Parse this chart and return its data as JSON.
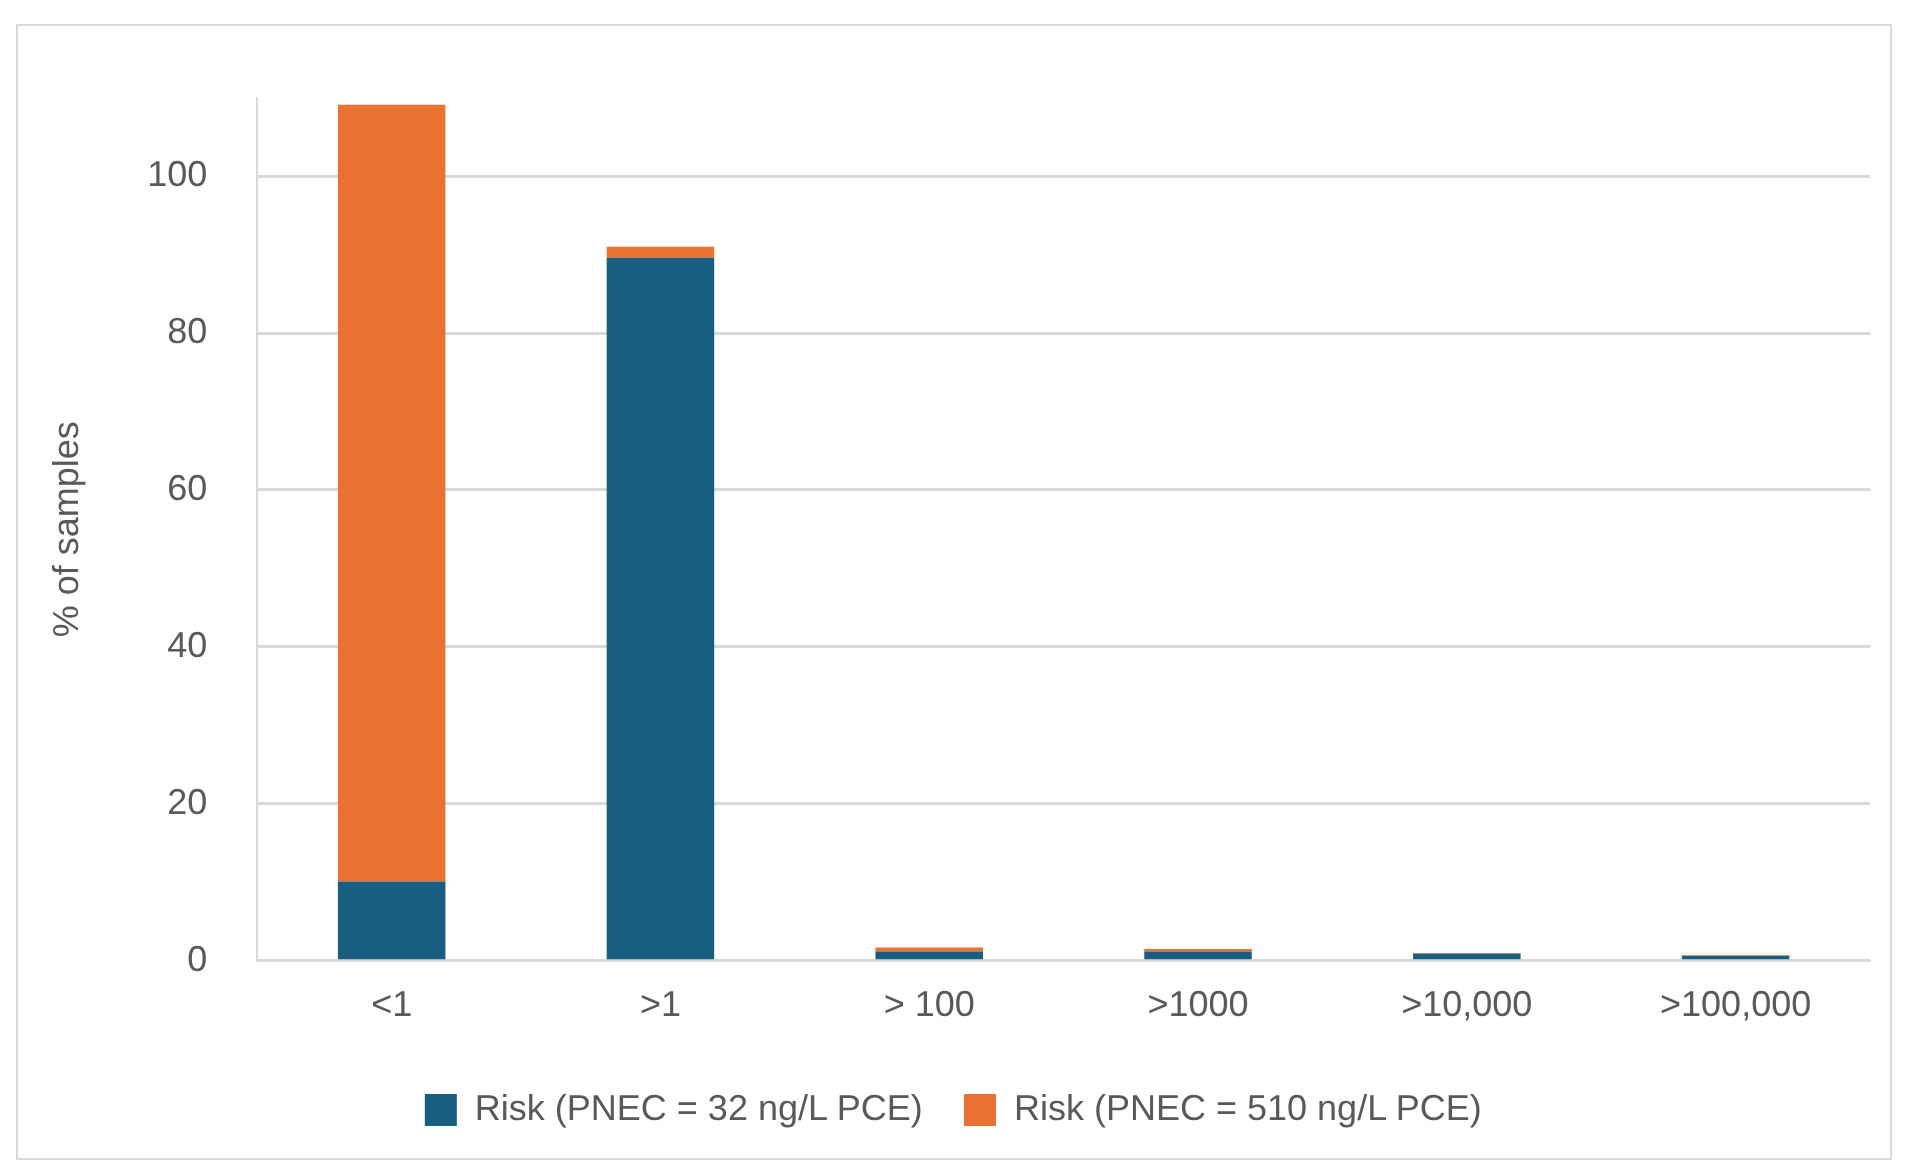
{
  "chart_data": {
    "type": "bar",
    "stacked": true,
    "ylabel": "% of samples",
    "categories": [
      "<1",
      ">1",
      "> 100",
      ">1000",
      ">10,000",
      ">100,000"
    ],
    "series": [
      {
        "name": "Risk (PNEC = 32 ng/L PCE)",
        "color": "#175e81",
        "values": [
          10.1,
          89.6,
          1.2,
          1.2,
          0.9,
          0.6
        ]
      },
      {
        "name": "Risk (PNEC = 510 ng/L PCE)",
        "color": "#e97132",
        "values": [
          99,
          1.4,
          0.5,
          0.3,
          0.1,
          0.1
        ]
      }
    ],
    "ylim": [
      0,
      110
    ],
    "yticks": [
      0,
      20,
      40,
      60,
      80,
      100
    ],
    "grid": "y",
    "legend": "bottom"
  }
}
